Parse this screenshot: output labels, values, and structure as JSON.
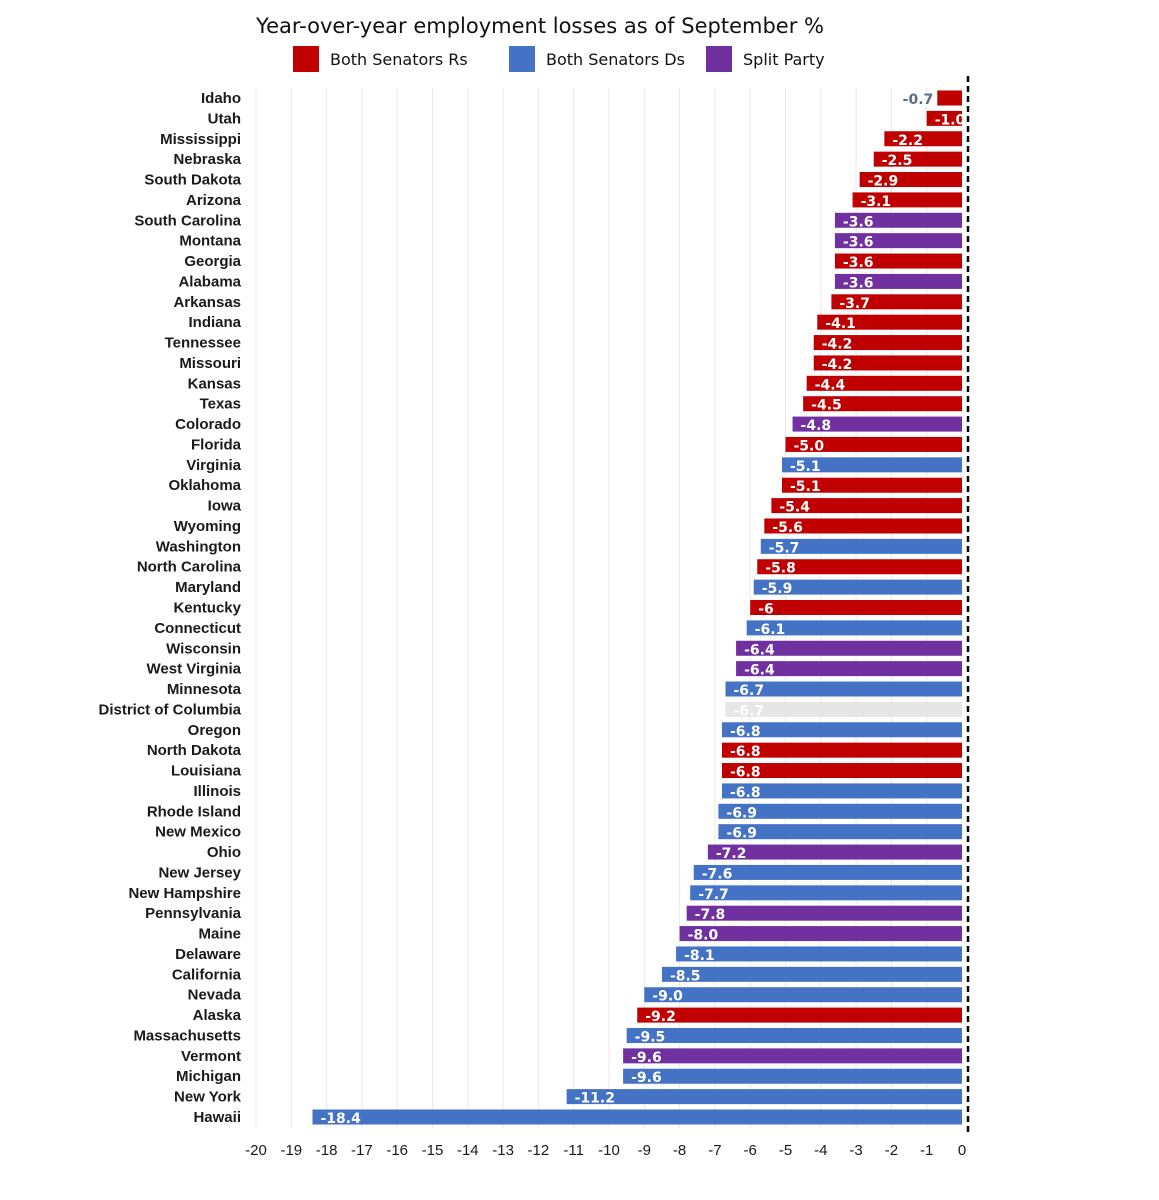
{
  "chart_data": {
    "type": "bar",
    "orientation": "horizontal",
    "title": "Year-over-year employment losses as of September %",
    "xlabel": "",
    "ylabel": "",
    "xlim": [
      -20,
      0
    ],
    "xticks": [
      "-20",
      "-19",
      "-18",
      "-17",
      "-16",
      "-15",
      "-14",
      "-13",
      "-12",
      "-11",
      "-10",
      "-9",
      "-8",
      "-7",
      "-6",
      "-5",
      "-4",
      "-3",
      "-2",
      "-1",
      "0"
    ],
    "grid": "vertical",
    "legend_position": "top",
    "legend": [
      {
        "key": "R",
        "label": "Both Senators Rs",
        "color": "#C00000"
      },
      {
        "key": "D",
        "label": "Both Senators Ds",
        "color": "#4472C4"
      },
      {
        "key": "S",
        "label": "Split Party",
        "color": "#7030A0"
      }
    ],
    "colors": {
      "R": "#C00000",
      "D": "#4472C4",
      "S": "#7030A0",
      "N": "#E6E6E6"
    },
    "categories": [
      "Idaho",
      "Utah",
      "Mississippi",
      "Nebraska",
      "South Dakota",
      "Arizona",
      "South Carolina",
      "Montana",
      "Georgia",
      "Alabama",
      "Arkansas",
      "Indiana",
      "Tennessee",
      "Missouri",
      "Kansas",
      "Texas",
      "Colorado",
      "Florida",
      "Virginia",
      "Oklahoma",
      "Iowa",
      "Wyoming",
      "Washington",
      "North Carolina",
      "Maryland",
      "Kentucky",
      "Connecticut",
      "Wisconsin",
      "West Virginia",
      "Minnesota",
      "District of Columbia",
      "Oregon",
      "North Dakota",
      "Louisiana",
      "Illinois",
      "Rhode Island",
      "New Mexico",
      "Ohio",
      "New Jersey",
      "New Hampshire",
      "Pennsylvania",
      "Maine",
      "Delaware",
      "California",
      "Nevada",
      "Alaska",
      "Massachusetts",
      "Vermont",
      "Michigan",
      "New York",
      "Hawaii"
    ],
    "values": [
      -0.7,
      -1.0,
      -2.2,
      -2.5,
      -2.9,
      -3.1,
      -3.6,
      -3.6,
      -3.6,
      -3.6,
      -3.7,
      -4.1,
      -4.2,
      -4.2,
      -4.4,
      -4.5,
      -4.8,
      -5.0,
      -5.1,
      -5.1,
      -5.4,
      -5.6,
      -5.7,
      -5.8,
      -5.9,
      -6,
      -6.1,
      -6.4,
      -6.4,
      -6.7,
      -6.7,
      -6.8,
      -6.8,
      -6.8,
      -6.8,
      -6.9,
      -6.9,
      -7.2,
      -7.6,
      -7.7,
      -7.8,
      -8.0,
      -8.1,
      -8.5,
      -9.0,
      -9.2,
      -9.5,
      -9.6,
      -9.6,
      -11.2,
      -18.4
    ],
    "value_labels": [
      "-0.7",
      "-1.0",
      "-2.2",
      "-2.5",
      "-2.9",
      "-3.1",
      "-3.6",
      "-3.6",
      "-3.6",
      "-3.6",
      "-3.7",
      "-4.1",
      "-4.2",
      "-4.2",
      "-4.4",
      "-4.5",
      "-4.8",
      "-5.0",
      "-5.1",
      "-5.1",
      "-5.4",
      "-5.6",
      "-5.7",
      "-5.8",
      "-5.9",
      "-6",
      "-6.1",
      "-6.4",
      "-6.4",
      "-6.7",
      "-6.7",
      "-6.8",
      "-6.8",
      "-6.8",
      "-6.8",
      "-6.9",
      "-6.9",
      "-7.2",
      "-7.6",
      "-7.7",
      "-7.8",
      "-8.0",
      "-8.1",
      "-8.5",
      "-9.0",
      "-9.2",
      "-9.5",
      "-9.6",
      "-9.6",
      "-11.2",
      "-18.4"
    ],
    "party": [
      "R",
      "R",
      "R",
      "R",
      "R",
      "R",
      "S",
      "S",
      "R",
      "S",
      "R",
      "R",
      "R",
      "R",
      "R",
      "R",
      "S",
      "R",
      "D",
      "R",
      "R",
      "R",
      "D",
      "R",
      "D",
      "R",
      "D",
      "S",
      "S",
      "D",
      "N",
      "D",
      "R",
      "R",
      "D",
      "D",
      "D",
      "S",
      "D",
      "D",
      "S",
      "S",
      "D",
      "D",
      "D",
      "R",
      "D",
      "S",
      "D",
      "D",
      "D"
    ]
  }
}
